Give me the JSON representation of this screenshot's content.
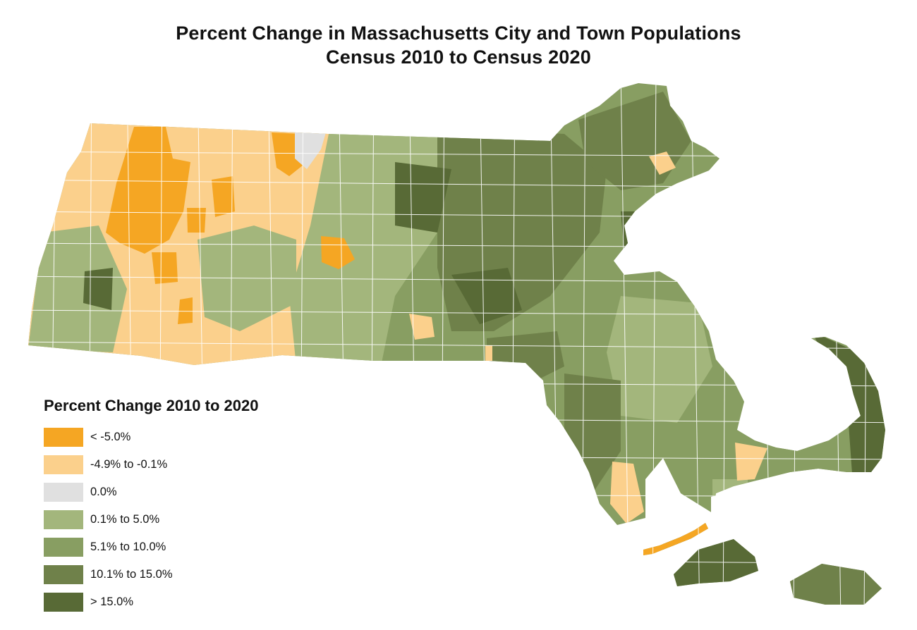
{
  "map": {
    "title_line1": "Percent Change in Massachusetts City and Town Populations",
    "title_line2": "Census 2010 to Census 2020"
  },
  "legend": {
    "title": "Percent Change 2010 to 2020",
    "classes": [
      {
        "label": "< -5.0%",
        "color": "#f5a623"
      },
      {
        "label": "-4.9% to -0.1%",
        "color": "#fbd08c"
      },
      {
        "label": "0.0%",
        "color": "#e0e0e0"
      },
      {
        "label": "0.1% to 5.0%",
        "color": "#a3b67c"
      },
      {
        "label": "5.1% to 10.0%",
        "color": "#889e62"
      },
      {
        "label": "10.1% to 15.0%",
        "color": "#6f814a"
      },
      {
        "label": "> 15.0%",
        "color": "#586a36"
      }
    ]
  }
}
